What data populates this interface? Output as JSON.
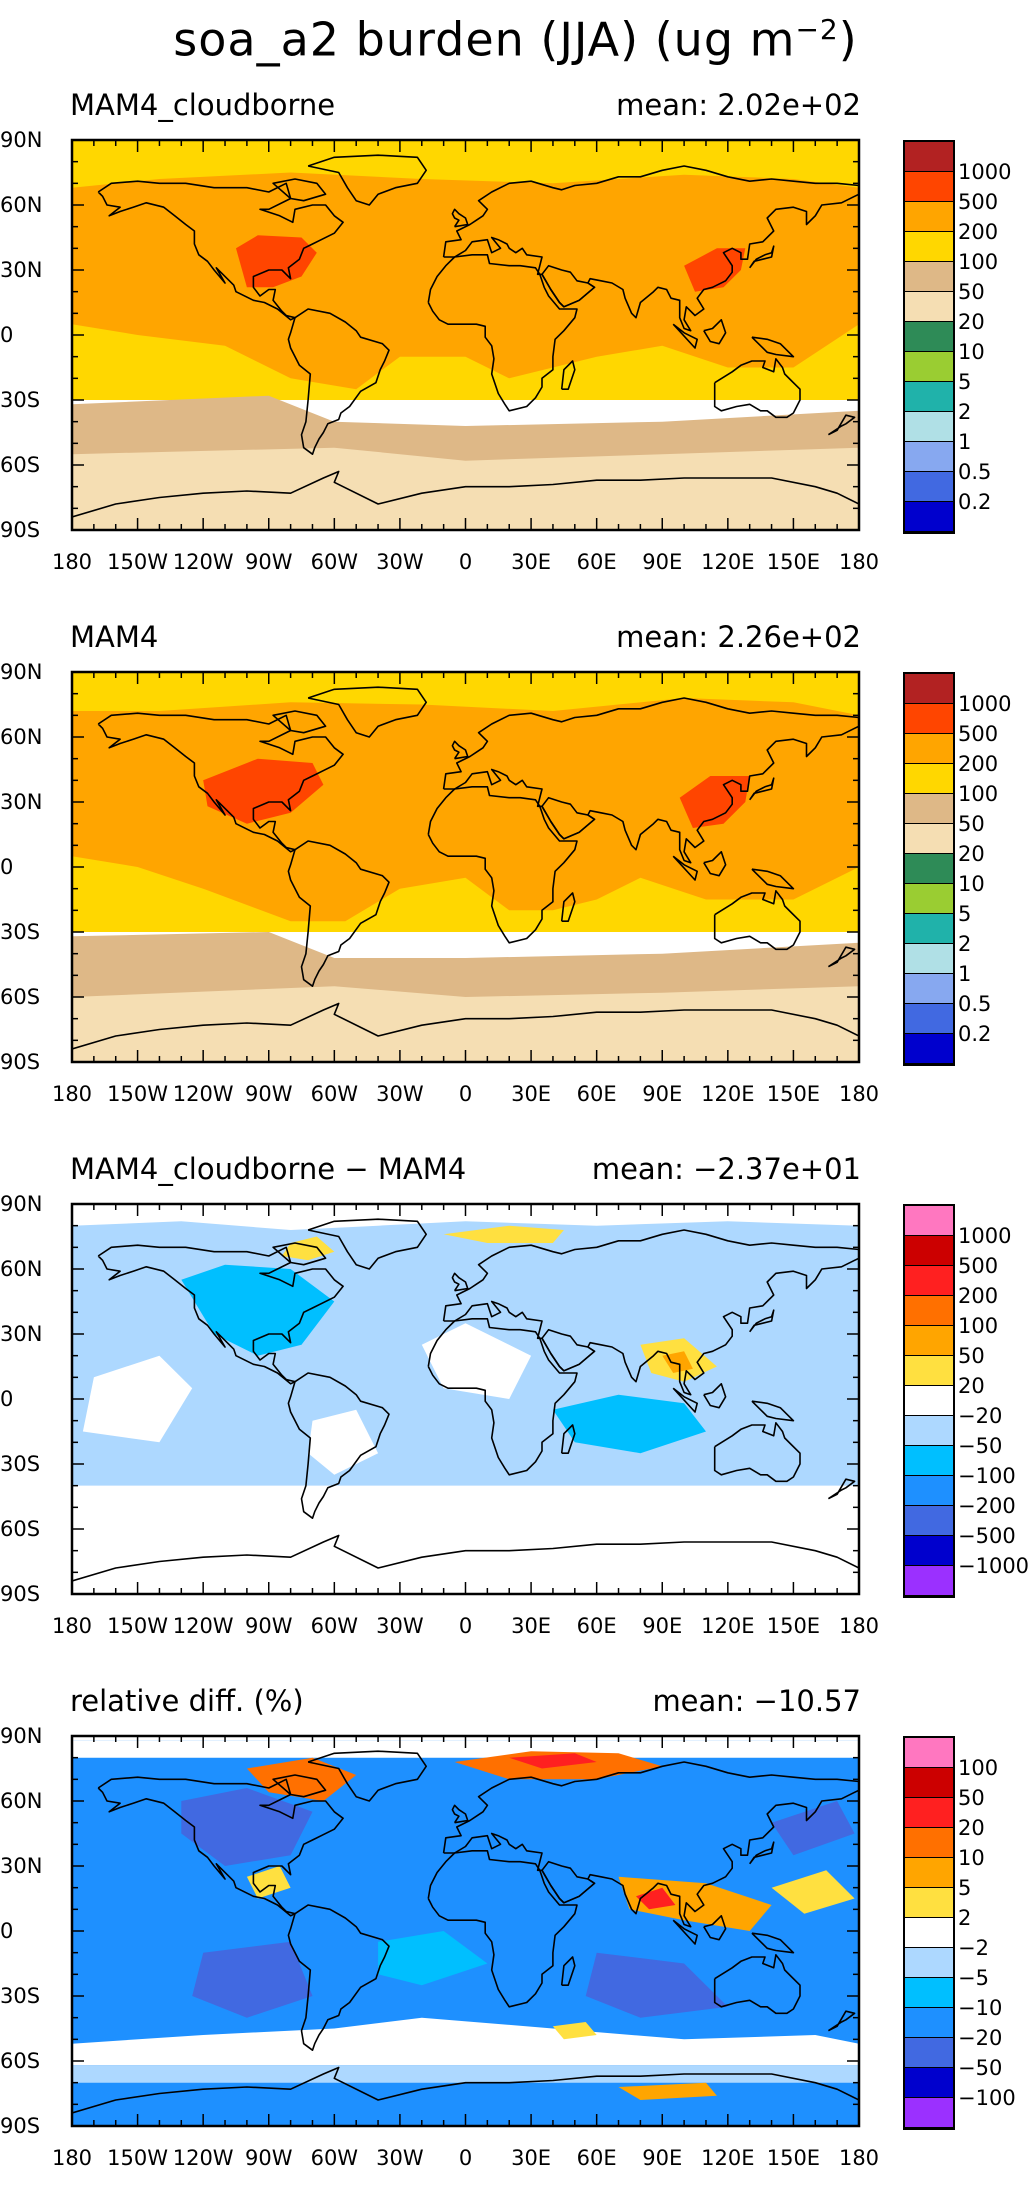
{
  "title_main": "soa_a2 burden (JJA) (ug m",
  "title_exp": "−2",
  "title_tail": ")",
  "lat_ticks": [
    "90N",
    "60N",
    "30N",
    "0",
    "30S",
    "60S",
    "90S"
  ],
  "lon_ticks": [
    "180",
    "150W",
    "120W",
    "90W",
    "60W",
    "30W",
    "0",
    "30E",
    "60E",
    "90E",
    "120E",
    "150E",
    "180"
  ],
  "panels": [
    {
      "left_title": "MAM4_cloudborne",
      "right_title": "mean: 2.02e+02",
      "colorbar": {
        "colors": [
          "#b22222",
          "#ff4500",
          "#ffa500",
          "#ffd700",
          "#deb887",
          "#f5deb3",
          "#2e8b57",
          "#9acd32",
          "#20b2aa",
          "#b0e0e6",
          "#87a8f0",
          "#4169e1",
          "#0000cd"
        ],
        "labels": [
          "1000",
          "500",
          "200",
          "100",
          "50",
          "20",
          "10",
          "5",
          "2",
          "1",
          "0.5",
          "0.2"
        ]
      }
    },
    {
      "left_title": "MAM4",
      "right_title": "mean: 2.26e+02",
      "colorbar": {
        "colors": [
          "#b22222",
          "#ff4500",
          "#ffa500",
          "#ffd700",
          "#deb887",
          "#f5deb3",
          "#2e8b57",
          "#9acd32",
          "#20b2aa",
          "#b0e0e6",
          "#87a8f0",
          "#4169e1",
          "#0000cd"
        ],
        "labels": [
          "1000",
          "500",
          "200",
          "100",
          "50",
          "20",
          "10",
          "5",
          "2",
          "1",
          "0.5",
          "0.2"
        ]
      }
    },
    {
      "left_title": "MAM4_cloudborne − MAM4",
      "right_title": "mean: −2.37e+01",
      "colorbar": {
        "colors": [
          "#ff77c0",
          "#cc0000",
          "#ff2020",
          "#ff7000",
          "#ffa500",
          "#ffe040",
          "#ffffff",
          "#add8ff",
          "#00bfff",
          "#1e90ff",
          "#4169e1",
          "#0000cd",
          "#9b30ff"
        ],
        "labels": [
          "1000",
          "500",
          "200",
          "100",
          "50",
          "20",
          "−20",
          "−50",
          "−100",
          "−200",
          "−500",
          "−1000"
        ]
      }
    },
    {
      "left_title": "relative diff. (%)",
      "right_title": "mean: −10.57",
      "colorbar": {
        "colors": [
          "#ff77c0",
          "#cc0000",
          "#ff2020",
          "#ff7000",
          "#ffa500",
          "#ffe040",
          "#ffffff",
          "#add8ff",
          "#00bfff",
          "#1e90ff",
          "#4169e1",
          "#0000cd",
          "#9b30ff"
        ],
        "labels": [
          "100",
          "50",
          "20",
          "10",
          "5",
          "2",
          "−2",
          "−5",
          "−10",
          "−20",
          "−50",
          "−100"
        ]
      }
    }
  ]
}
